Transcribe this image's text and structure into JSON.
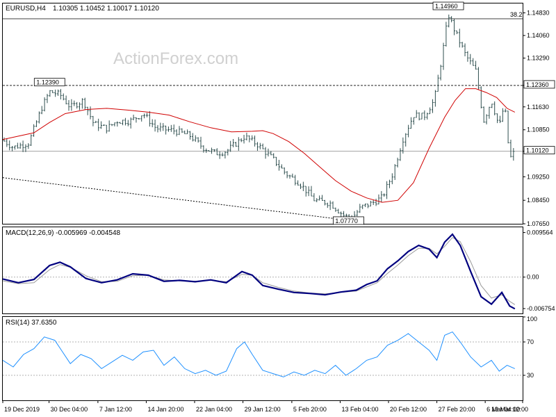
{
  "header": {
    "symbol_timeframe": "EURUSD,H4",
    "ohlc": "1.10305 1.10452 1.10017 1.10120"
  },
  "watermark": "ActionForex.com",
  "colors": {
    "candle": "#2f4f4f",
    "ma": "#d00000",
    "macd": "#00007f",
    "macd_signal": "#999999",
    "rsi": "#1e90ff",
    "grid_line": "#000000",
    "level_label_bg": "#ffffff"
  },
  "chart_data": [
    {
      "type": "candlestick",
      "name": "price",
      "symbol": "EURUSD",
      "timeframe": "H4",
      "ylim": [
        1.0765,
        1.1515
      ],
      "y_ticks": [
        "1.14830",
        "1.14060",
        "1.13290",
        "1.12360",
        "1.11630",
        "1.10850",
        "1.10120",
        "1.09250",
        "1.08450",
        "1.07650"
      ],
      "y_tick_values": [
        1.1483,
        1.1406,
        1.1329,
        1.1236,
        1.1163,
        1.1085,
        1.1012,
        1.0925,
        1.0845,
        1.0765
      ],
      "current_price_label": "1.10120",
      "current_price": 1.1012,
      "level_label": "1.12360",
      "level_value": 1.1236,
      "annotations": [
        {
          "text": "1.14960",
          "value": 1.1496,
          "t": 0.857
        },
        {
          "text": "1.12390",
          "value": 1.1239,
          "t": 0.09
        },
        {
          "text": "1.07770",
          "value": 1.0777,
          "t": 0.665
        }
      ],
      "fib_label": "38.2",
      "fib_value": 1.1463,
      "dotted_trend": [
        {
          "t": 0.0,
          "v": 1.0922
        },
        {
          "t": 0.665,
          "v": 1.0777
        }
      ],
      "ma_series": [
        [
          0.0,
          1.1052
        ],
        [
          0.06,
          1.1075
        ],
        [
          0.09,
          1.111
        ],
        [
          0.12,
          1.114
        ],
        [
          0.16,
          1.1154
        ],
        [
          0.2,
          1.1158
        ],
        [
          0.24,
          1.1152
        ],
        [
          0.28,
          1.1145
        ],
        [
          0.32,
          1.1135
        ],
        [
          0.36,
          1.1112
        ],
        [
          0.4,
          1.1092
        ],
        [
          0.44,
          1.1078
        ],
        [
          0.48,
          1.108
        ],
        [
          0.5,
          1.1082
        ],
        [
          0.52,
          1.1072
        ],
        [
          0.55,
          1.1045
        ],
        [
          0.58,
          1.1005
        ],
        [
          0.61,
          1.0958
        ],
        [
          0.64,
          1.0912
        ],
        [
          0.67,
          1.0876
        ],
        [
          0.7,
          1.0853
        ],
        [
          0.73,
          1.0838
        ],
        [
          0.76,
          1.0845
        ],
        [
          0.79,
          1.0905
        ],
        [
          0.82,
          1.1022
        ],
        [
          0.85,
          1.1128
        ],
        [
          0.87,
          1.1185
        ],
        [
          0.89,
          1.1225
        ],
        [
          0.91,
          1.1225
        ],
        [
          0.93,
          1.1212
        ],
        [
          0.95,
          1.1195
        ],
        [
          0.97,
          1.1158
        ],
        [
          0.985,
          1.1145
        ]
      ],
      "price_path": [
        [
          0.0,
          1.105
        ],
        [
          0.02,
          1.1025
        ],
        [
          0.05,
          1.104
        ],
        [
          0.075,
          1.116
        ],
        [
          0.09,
          1.1215
        ],
        [
          0.11,
          1.1205
        ],
        [
          0.13,
          1.1162
        ],
        [
          0.155,
          1.1185
        ],
        [
          0.175,
          1.1105
        ],
        [
          0.2,
          1.109
        ],
        [
          0.22,
          1.1115
        ],
        [
          0.245,
          1.1115
        ],
        [
          0.27,
          1.114
        ],
        [
          0.295,
          1.109
        ],
        [
          0.33,
          1.1082
        ],
        [
          0.36,
          1.1065
        ],
        [
          0.385,
          1.1025
        ],
        [
          0.41,
          1.1005
        ],
        [
          0.43,
          1.1012
        ],
        [
          0.465,
          1.1062
        ],
        [
          0.49,
          1.1035
        ],
        [
          0.52,
          1.0985
        ],
        [
          0.545,
          1.0935
        ],
        [
          0.57,
          1.0905
        ],
        [
          0.6,
          1.0845
        ],
        [
          0.63,
          1.0835
        ],
        [
          0.655,
          1.0795
        ],
        [
          0.67,
          1.0782
        ],
        [
          0.69,
          1.0822
        ],
        [
          0.71,
          1.0835
        ],
        [
          0.73,
          1.0855
        ],
        [
          0.75,
          1.0935
        ],
        [
          0.77,
          1.1055
        ],
        [
          0.79,
          1.1135
        ],
        [
          0.81,
          1.113
        ],
        [
          0.83,
          1.1185
        ],
        [
          0.845,
          1.1335
        ],
        [
          0.857,
          1.1478
        ],
        [
          0.87,
          1.142
        ],
        [
          0.89,
          1.134
        ],
        [
          0.91,
          1.1285
        ],
        [
          0.925,
          1.1115
        ],
        [
          0.94,
          1.1185
        ],
        [
          0.955,
          1.1095
        ],
        [
          0.965,
          1.1175
        ],
        [
          0.975,
          1.0985
        ],
        [
          0.985,
          1.1012
        ]
      ]
    },
    {
      "type": "line",
      "name": "MACD",
      "label": "MACD(12,26,9) -0.005969 -0.004548",
      "ylim": [
        -0.0078,
        0.0107
      ],
      "y_ticks": [
        "0.009564",
        "0.00",
        "-0.006754"
      ],
      "y_tick_values": [
        0.009564,
        0.0,
        -0.006754
      ],
      "macd": [
        [
          0.0,
          -0.0004
        ],
        [
          0.03,
          -0.0012
        ],
        [
          0.06,
          -0.0005
        ],
        [
          0.09,
          0.0025
        ],
        [
          0.11,
          0.0032
        ],
        [
          0.13,
          0.0022
        ],
        [
          0.16,
          -0.0003
        ],
        [
          0.19,
          -0.0012
        ],
        [
          0.22,
          -0.0006
        ],
        [
          0.25,
          0.0007
        ],
        [
          0.28,
          0.0004
        ],
        [
          0.31,
          -0.0009
        ],
        [
          0.34,
          -0.0007
        ],
        [
          0.37,
          -0.001
        ],
        [
          0.4,
          -0.0006
        ],
        [
          0.43,
          -0.0012
        ],
        [
          0.46,
          0.0012
        ],
        [
          0.48,
          0.0004
        ],
        [
          0.5,
          -0.0018
        ],
        [
          0.53,
          -0.0026
        ],
        [
          0.56,
          -0.0033
        ],
        [
          0.59,
          -0.0035
        ],
        [
          0.62,
          -0.0038
        ],
        [
          0.65,
          -0.0032
        ],
        [
          0.68,
          -0.0028
        ],
        [
          0.7,
          -0.0016
        ],
        [
          0.72,
          -0.0008
        ],
        [
          0.74,
          0.0018
        ],
        [
          0.76,
          0.0035
        ],
        [
          0.78,
          0.0055
        ],
        [
          0.8,
          0.0068
        ],
        [
          0.82,
          0.006
        ],
        [
          0.835,
          0.0042
        ],
        [
          0.85,
          0.0075
        ],
        [
          0.865,
          0.0092
        ],
        [
          0.88,
          0.0068
        ],
        [
          0.9,
          0.0012
        ],
        [
          0.92,
          -0.0042
        ],
        [
          0.94,
          -0.0058
        ],
        [
          0.96,
          -0.0033
        ],
        [
          0.975,
          -0.0062
        ],
        [
          0.985,
          -0.0068
        ]
      ],
      "signal": [
        [
          0.0,
          -0.0008
        ],
        [
          0.03,
          -0.0014
        ],
        [
          0.06,
          -0.0012
        ],
        [
          0.09,
          0.0016
        ],
        [
          0.11,
          0.0027
        ],
        [
          0.13,
          0.0021
        ],
        [
          0.16,
          0.0003
        ],
        [
          0.19,
          -0.001
        ],
        [
          0.22,
          -0.0009
        ],
        [
          0.25,
          0.0003
        ],
        [
          0.28,
          0.0004
        ],
        [
          0.31,
          -0.0006
        ],
        [
          0.34,
          -0.0008
        ],
        [
          0.37,
          -0.0009
        ],
        [
          0.4,
          -0.0007
        ],
        [
          0.43,
          -0.001
        ],
        [
          0.46,
          0.0006
        ],
        [
          0.48,
          0.0004
        ],
        [
          0.5,
          -0.0012
        ],
        [
          0.53,
          -0.0022
        ],
        [
          0.56,
          -0.003
        ],
        [
          0.59,
          -0.0034
        ],
        [
          0.62,
          -0.0036
        ],
        [
          0.65,
          -0.0033
        ],
        [
          0.68,
          -0.003
        ],
        [
          0.7,
          -0.0021
        ],
        [
          0.72,
          -0.0012
        ],
        [
          0.74,
          0.0008
        ],
        [
          0.76,
          0.0026
        ],
        [
          0.78,
          0.0046
        ],
        [
          0.8,
          0.0062
        ],
        [
          0.82,
          0.0062
        ],
        [
          0.835,
          0.005
        ],
        [
          0.85,
          0.0066
        ],
        [
          0.865,
          0.0085
        ],
        [
          0.88,
          0.0076
        ],
        [
          0.9,
          0.0033
        ],
        [
          0.92,
          -0.0018
        ],
        [
          0.94,
          -0.0045
        ],
        [
          0.96,
          -0.0038
        ],
        [
          0.975,
          -0.0052
        ],
        [
          0.985,
          -0.0059
        ]
      ]
    },
    {
      "type": "line",
      "name": "RSI",
      "label": "RSI(14) 37.6350",
      "ylim": [
        0,
        100
      ],
      "y_ticks": [
        "100",
        "70",
        "30"
      ],
      "y_tick_values": [
        100,
        70,
        30
      ],
      "rsi": [
        [
          0.0,
          48
        ],
        [
          0.02,
          40
        ],
        [
          0.04,
          55
        ],
        [
          0.06,
          62
        ],
        [
          0.08,
          76
        ],
        [
          0.1,
          72
        ],
        [
          0.115,
          58
        ],
        [
          0.13,
          44
        ],
        [
          0.15,
          55
        ],
        [
          0.17,
          50
        ],
        [
          0.19,
          38
        ],
        [
          0.21,
          46
        ],
        [
          0.23,
          54
        ],
        [
          0.25,
          48
        ],
        [
          0.27,
          58
        ],
        [
          0.29,
          60
        ],
        [
          0.31,
          42
        ],
        [
          0.33,
          52
        ],
        [
          0.35,
          38
        ],
        [
          0.37,
          32
        ],
        [
          0.39,
          36
        ],
        [
          0.41,
          30
        ],
        [
          0.43,
          35
        ],
        [
          0.45,
          62
        ],
        [
          0.465,
          70
        ],
        [
          0.48,
          55
        ],
        [
          0.5,
          36
        ],
        [
          0.52,
          32
        ],
        [
          0.54,
          28
        ],
        [
          0.56,
          34
        ],
        [
          0.58,
          30
        ],
        [
          0.6,
          36
        ],
        [
          0.62,
          32
        ],
        [
          0.64,
          42
        ],
        [
          0.66,
          30
        ],
        [
          0.68,
          38
        ],
        [
          0.7,
          48
        ],
        [
          0.72,
          52
        ],
        [
          0.74,
          66
        ],
        [
          0.76,
          72
        ],
        [
          0.78,
          80
        ],
        [
          0.8,
          70
        ],
        [
          0.82,
          60
        ],
        [
          0.835,
          48
        ],
        [
          0.85,
          78
        ],
        [
          0.865,
          82
        ],
        [
          0.88,
          70
        ],
        [
          0.9,
          52
        ],
        [
          0.92,
          40
        ],
        [
          0.94,
          48
        ],
        [
          0.955,
          35
        ],
        [
          0.97,
          42
        ],
        [
          0.985,
          38
        ]
      ]
    }
  ],
  "x_axis": {
    "labels": [
      "19 Dec 2019",
      "30 Dec 04:00",
      "7 Jan 12:00",
      "14 Jan 20:00",
      "22 Jan 04:00",
      "29 Jan 12:00",
      "5 Feb 20:00",
      "13 Feb 04:00",
      "20 Feb 12:00",
      "27 Feb 20:00",
      "6 Mar 04:00",
      "13 Mar 12:00"
    ],
    "positions": [
      0.0,
      0.089,
      0.183,
      0.276,
      0.369,
      0.462,
      0.556,
      0.649,
      0.742,
      0.835,
      0.928,
      1.0
    ]
  }
}
